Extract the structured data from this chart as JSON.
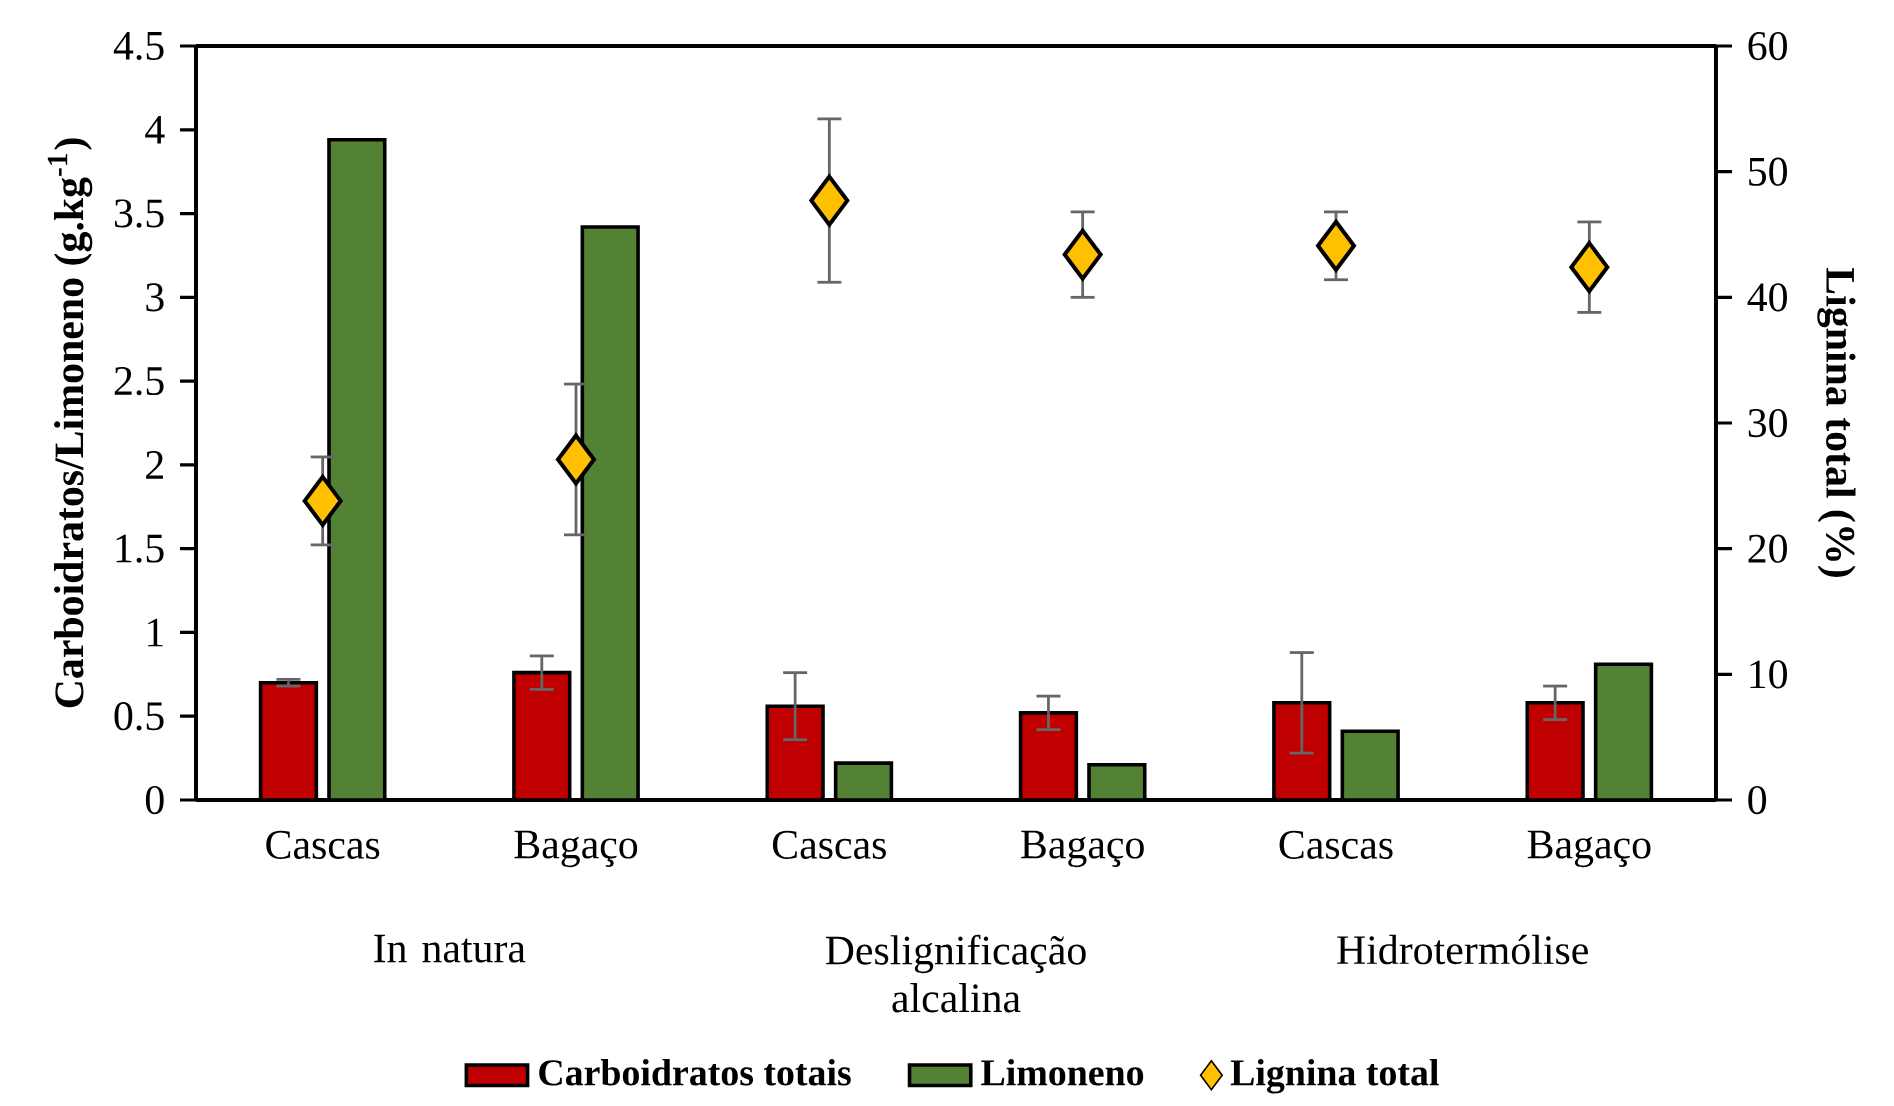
{
  "chart_data": {
    "type": "bar",
    "categories": [
      "Cascas",
      "Bagaço",
      "Cascas",
      "Bagaço",
      "Cascas",
      "Bagaço"
    ],
    "series": [
      {
        "name": "Carboidratos totais",
        "color": "#c00000",
        "values": [
          0.7,
          0.76,
          0.56,
          0.52,
          0.58,
          0.58
        ],
        "errors": [
          0.02,
          0.1,
          0.2,
          0.1,
          0.3,
          0.1
        ]
      },
      {
        "name": "Limoneno",
        "color": "#548235",
        "values": [
          3.94,
          3.42,
          0.22,
          0.21,
          0.41,
          0.81
        ]
      },
      {
        "name": "Lignina total",
        "type": "scatter",
        "axis": "y2",
        "marker": "diamond",
        "color": "#ffc000",
        "values": [
          23.8,
          27.1,
          47.7,
          43.4,
          44.1,
          42.4
        ],
        "errors": [
          3.5,
          6,
          6.5,
          3.4,
          2.7,
          3.6
        ]
      }
    ],
    "ylim": [
      0,
      4.5
    ],
    "yticks": [
      0,
      0.5,
      1,
      1.5,
      2,
      2.5,
      3,
      3.5,
      4,
      4.5
    ],
    "y2lim": [
      0,
      60
    ],
    "y2ticks": [
      0,
      10,
      20,
      30,
      40,
      50,
      60
    ],
    "ylabel": "Carboidratos/Limoneno  (g.kg$^{-1}$)",
    "y2label": "Lignina total (%)",
    "annotations": [
      "In natura",
      "Deslignificação alcalina",
      "Hidrotermólise"
    ],
    "legend": "bottom"
  }
}
